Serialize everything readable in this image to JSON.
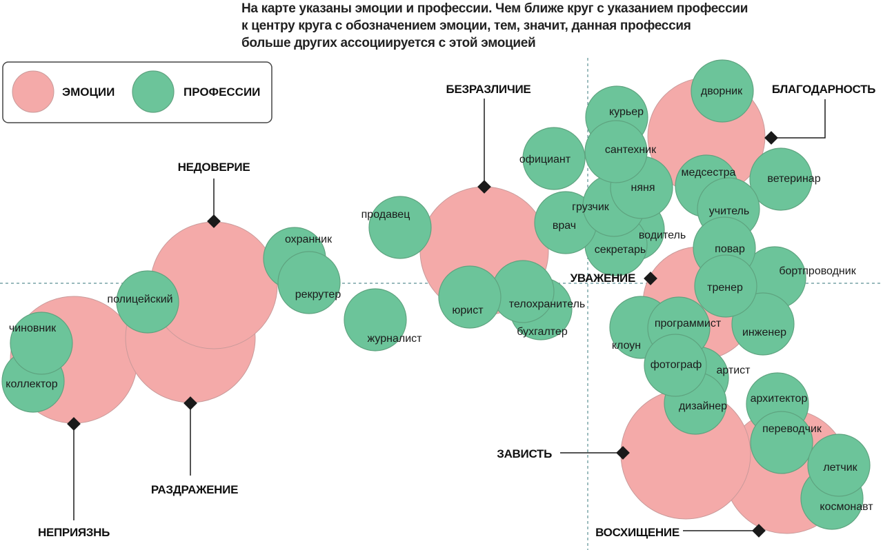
{
  "title": {
    "lines": [
      "На карте указаны эмоции и профессии. Чем ближе круг с указанием профессии",
      "к центру круга с обозначением эмоции, тем, значит, данная профессия",
      "больше других ассоциируется с этой эмоцией"
    ]
  },
  "legend": {
    "emotions_label": "ЭМОЦИИ",
    "professions_label": "ПРОФЕССИИ"
  },
  "colors": {
    "emotion_fill": "#f4aaa9",
    "profession_fill": "#6cc49a",
    "axis": "#5b8f93",
    "marker": "#1a1a1a"
  },
  "emotions": [
    "НЕДОВЕРИЕ",
    "РАЗДРАЖЕНИЕ",
    "НЕПРИЯЗНЬ",
    "БЕЗРАЗЛИЧИЕ",
    "БЛАГОДАРНОСТЬ",
    "УВАЖЕНИЕ",
    "ЗАВИСТЬ",
    "ВОСХИЩЕНИЕ"
  ],
  "professions": [
    "чиновник",
    "коллектор",
    "полицейский",
    "охранник",
    "рекрутер",
    "журналист",
    "продавец",
    "юрист",
    "телохранитель",
    "бухгалтер",
    "официант",
    "курьер",
    "сантехник",
    "няня",
    "грузчик",
    "врач",
    "водитель",
    "секретарь",
    "дворник",
    "медсестра",
    "ветеринар",
    "учитель",
    "повар",
    "бортпроводник",
    "тренер",
    "программист",
    "инженер",
    "клоун",
    "фотограф",
    "артист",
    "дизайнер",
    "архитектор",
    "переводчик",
    "летчик",
    "космонавт"
  ]
}
